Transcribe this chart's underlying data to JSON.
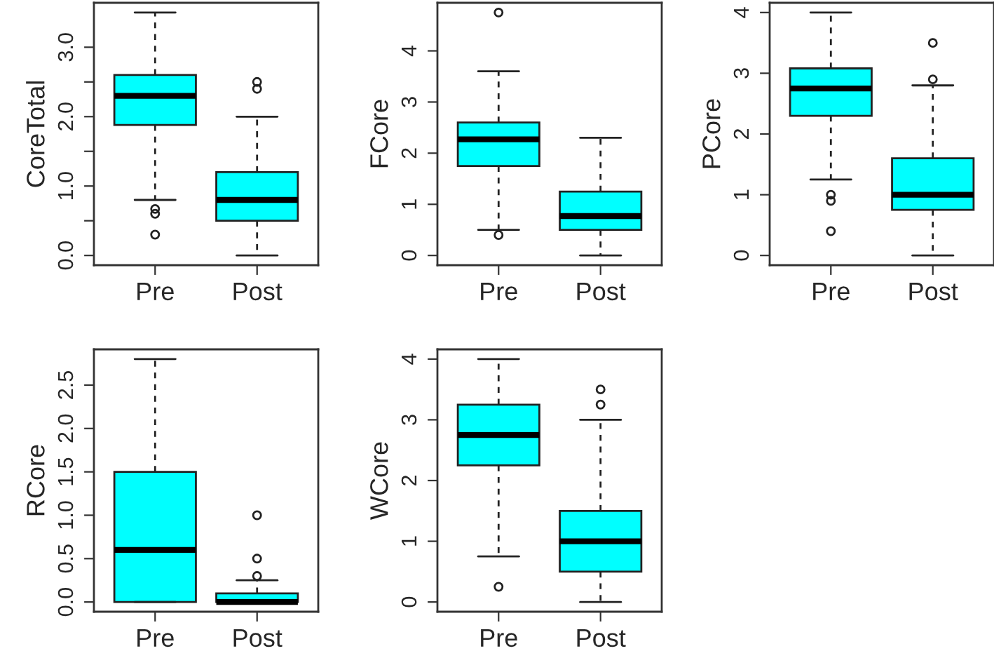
{
  "chart_data": [
    {
      "type": "box",
      "ylabel": "CoreTotal",
      "categories": [
        "Pre",
        "Post"
      ],
      "color": "#00ffff",
      "ylim": [
        -0.14,
        3.64
      ],
      "yticks": [
        {
          "value": 0,
          "label": "0.0"
        },
        {
          "value": 0.5,
          "label": null
        },
        {
          "value": 1,
          "label": "1.0"
        },
        {
          "value": 1.5,
          "label": null
        },
        {
          "value": 2,
          "label": "2.0"
        },
        {
          "value": 2.5,
          "label": null
        },
        {
          "value": 3,
          "label": "3.0"
        }
      ],
      "boxes": [
        {
          "low": 0.8,
          "q1": 1.88,
          "median": 2.3,
          "q3": 2.6,
          "high": 3.5,
          "outliers": [
            0.6,
            0.67,
            0.3
          ]
        },
        {
          "low": 0,
          "q1": 0.5,
          "median": 0.8,
          "q3": 1.2,
          "high": 2.0,
          "outliers": [
            2.4,
            2.5
          ]
        }
      ]
    },
    {
      "type": "box",
      "ylabel": "FCore",
      "categories": [
        "Pre",
        "Post"
      ],
      "color": "#00ffff",
      "ylim": [
        -0.19,
        4.94
      ],
      "yticks": [
        0,
        1,
        2,
        3,
        4
      ],
      "boxes": [
        {
          "low": 0.5,
          "q1": 1.75,
          "median": 2.27,
          "q3": 2.6,
          "high": 3.6,
          "outliers": [
            0.4,
            4.75
          ]
        },
        {
          "low": 0,
          "q1": 0.5,
          "median": 0.77,
          "q3": 1.25,
          "high": 2.3
        }
      ]
    },
    {
      "type": "box",
      "ylabel": "PCore",
      "categories": [
        "Pre",
        "Post"
      ],
      "color": "#00ffff",
      "ylim": [
        -0.16,
        4.16
      ],
      "yticks": [
        0,
        1,
        2,
        3,
        4
      ],
      "boxes": [
        {
          "low": 1.25,
          "q1": 2.3,
          "median": 2.75,
          "q3": 3.08,
          "high": 4.0,
          "outliers": [
            0.9,
            1.0,
            0.4
          ]
        },
        {
          "low": 0,
          "q1": 0.75,
          "median": 1.0,
          "q3": 1.6,
          "high": 2.8,
          "outliers": [
            2.9,
            3.5
          ]
        }
      ]
    },
    {
      "type": "box",
      "ylabel": "RCore",
      "categories": [
        "Pre",
        "Post"
      ],
      "color": "#00ffff",
      "ylim": [
        -0.112,
        2.912
      ],
      "yticks": [
        {
          "value": 0,
          "label": "0.0"
        },
        {
          "value": 0.5,
          "label": "0.5"
        },
        {
          "value": 1,
          "label": "1.0"
        },
        {
          "value": 1.5,
          "label": "1.5"
        },
        {
          "value": 2,
          "label": "2.0"
        },
        {
          "value": 2.5,
          "label": "2.5"
        }
      ],
      "boxes": [
        {
          "low": 0,
          "q1": 0,
          "median": 0.6,
          "q3": 1.5,
          "high": 2.8
        },
        {
          "low": 0,
          "q1": 0,
          "median": 0,
          "q3": 0.1,
          "high": 0.25,
          "outliers": [
            0.3,
            0.5,
            1.0
          ]
        }
      ]
    },
    {
      "type": "box",
      "ylabel": "WCore",
      "categories": [
        "Pre",
        "Post"
      ],
      "color": "#00ffff",
      "ylim": [
        -0.16,
        4.16
      ],
      "yticks": [
        0,
        1,
        2,
        3,
        4
      ],
      "boxes": [
        {
          "low": 0.75,
          "q1": 2.25,
          "median": 2.75,
          "q3": 3.25,
          "high": 4.0,
          "outliers": [
            0.25
          ]
        },
        {
          "low": 0,
          "q1": 0.5,
          "median": 1.0,
          "q3": 1.5,
          "high": 3.0,
          "outliers": [
            3.25,
            3.5
          ]
        }
      ]
    }
  ]
}
